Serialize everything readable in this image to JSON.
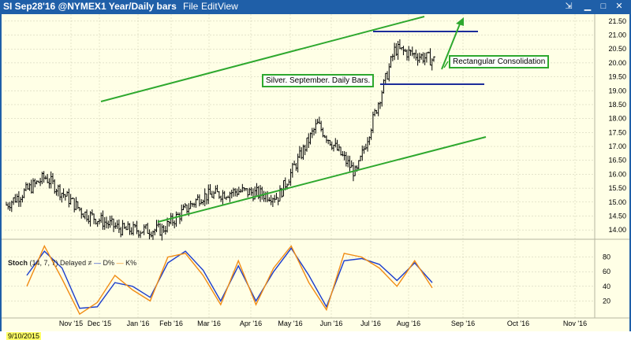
{
  "titlebar": {
    "symbol": "SI Sep28'16 @NYMEX",
    "timeframe": "1 Year/Daily bars",
    "menu": [
      "File",
      "Edit",
      "View"
    ]
  },
  "annotations": {
    "chart_title": "Silver. September. Daily Bars.",
    "pattern": "Rectangular Consolidation"
  },
  "stoch": {
    "label": "Stoch",
    "params": "(14, 7, 7) Delayed ≠",
    "d_legend": "D%",
    "k_legend": "K%"
  },
  "date_label": "9/10/2015",
  "colors": {
    "background": "#ffffe6",
    "titlebar": "#1f5fa8",
    "trendline": "#2ea82e",
    "rectangle": "#1c2c9a",
    "d_line": "#1a3ccc",
    "k_line": "#f08c14",
    "bars": "#000000"
  },
  "chart_data": [
    {
      "type": "ohlc",
      "title": "",
      "ylim": [
        13.75,
        21.75
      ],
      "yticks": [
        "21.50",
        "21.00",
        "20.50",
        "20.00",
        "19.50",
        "19.00",
        "18.50",
        "18.00",
        "17.50",
        "17.00",
        "16.50",
        "16.00",
        "15.50",
        "15.00",
        "14.50",
        "14.00"
      ],
      "xticks": [
        "Nov '15",
        "Dec '15",
        "Jan '16",
        "Feb '16",
        "Mar '16",
        "Apr '16",
        "May '16",
        "Jun '16",
        "Jul '16",
        "Aug '16",
        "Sep '16",
        "Oct '16",
        "Nov '16"
      ],
      "grid": true,
      "approx_closes": [
        {
          "date": "Sep '15",
          "close": 14.9
        },
        {
          "date": "Oct '15",
          "close": 15.9
        },
        {
          "date": "Nov '15",
          "close": 14.6
        },
        {
          "date": "Dec '15",
          "close": 14.0
        },
        {
          "date": "Jan '16",
          "close": 14.0
        },
        {
          "date": "Feb '16",
          "close": 15.2
        },
        {
          "date": "Mar '16",
          "close": 15.4
        },
        {
          "date": "Apr '16",
          "close": 15.2
        },
        {
          "date": "May '16",
          "close": 17.8
        },
        {
          "date": "Jun '16",
          "close": 16.0
        },
        {
          "date": "Jul '16",
          "close": 20.5
        },
        {
          "date": "Aug '16",
          "close": 20.1
        }
      ]
    },
    {
      "type": "line",
      "title": "Stoch",
      "ylim": [
        0,
        100
      ],
      "yticks": [
        "80",
        "60",
        "40",
        "20"
      ],
      "series": [
        {
          "name": "D%",
          "values": [
            55,
            88,
            65,
            10,
            12,
            45,
            40,
            25,
            72,
            88,
            62,
            20,
            68,
            20,
            60,
            92,
            55,
            12,
            75,
            78,
            70,
            48,
            72,
            45
          ]
        },
        {
          "name": "K%",
          "values": [
            40,
            95,
            50,
            2,
            18,
            55,
            35,
            20,
            80,
            85,
            55,
            15,
            75,
            15,
            65,
            95,
            45,
            8,
            85,
            80,
            65,
            40,
            75,
            38
          ]
        }
      ]
    }
  ]
}
